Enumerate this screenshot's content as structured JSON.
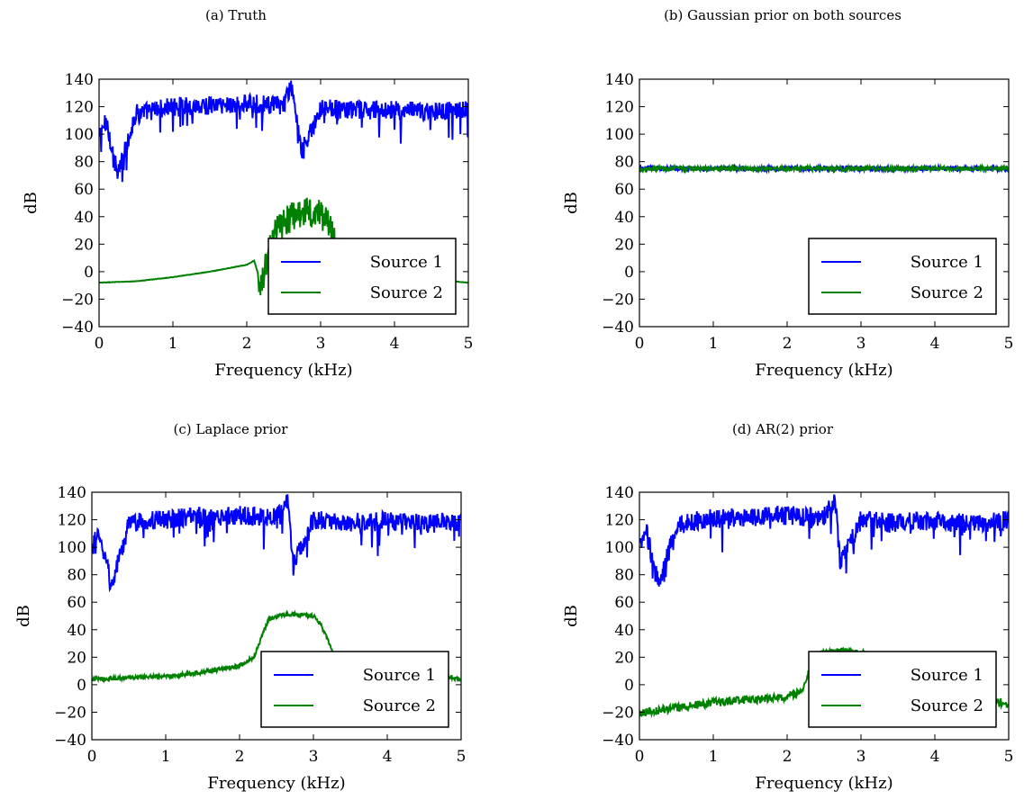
{
  "chart_data": [
    {
      "type": "line",
      "caption": "(a) Truth",
      "xlabel": "Frequency (kHz)",
      "ylabel": "dB",
      "xlim": [
        0,
        5
      ],
      "ylim": [
        -40,
        140
      ],
      "xticks": [
        "0",
        "1",
        "2",
        "3",
        "4",
        "5"
      ],
      "yticks": [
        "−40",
        "−20",
        "0",
        "20",
        "40",
        "60",
        "80",
        "100",
        "120",
        "140"
      ],
      "legend_position": "lower-right",
      "series": [
        {
          "name": "Source 1",
          "color": "#0000ff",
          "x": [
            0,
            0.1,
            0.25,
            0.5,
            1,
            1.5,
            2,
            2.5,
            2.6,
            2.75,
            3,
            3.5,
            4,
            4.5,
            5
          ],
          "y": [
            98,
            110,
            70,
            115,
            120,
            121,
            122,
            121,
            134,
            88,
            119,
            117,
            118,
            116,
            118
          ]
        },
        {
          "name": "Source 2",
          "color": "#008000",
          "x": [
            0,
            0.5,
            1,
            1.5,
            2,
            2.1,
            2.2,
            2.3,
            2.4,
            2.6,
            2.8,
            3,
            3.1,
            3.2,
            3.3,
            5
          ],
          "y": [
            -8,
            -7,
            -4,
            0,
            5,
            8,
            -10,
            15,
            30,
            40,
            44,
            42,
            36,
            22,
            0,
            -8
          ]
        }
      ]
    },
    {
      "type": "line",
      "caption": "(b) Gaussian prior on both sources",
      "xlabel": "Frequency (kHz)",
      "ylabel": "dB",
      "xlim": [
        0,
        5
      ],
      "ylim": [
        -40,
        140
      ],
      "xticks": [
        "0",
        "1",
        "2",
        "3",
        "4",
        "5"
      ],
      "yticks": [
        "−40",
        "−20",
        "0",
        "20",
        "40",
        "60",
        "80",
        "100",
        "120",
        "140"
      ],
      "legend_position": "lower-right",
      "series": [
        {
          "name": "Source 1",
          "color": "#0000ff",
          "x": [
            0,
            1,
            2,
            3,
            4,
            5
          ],
          "y": [
            75,
            75,
            75,
            75,
            75,
            75
          ]
        },
        {
          "name": "Source 2",
          "color": "#008000",
          "x": [
            0,
            1,
            2,
            3,
            4,
            5
          ],
          "y": [
            75,
            75,
            75,
            75,
            75,
            75
          ]
        }
      ]
    },
    {
      "type": "line",
      "caption": "(c) Laplace prior",
      "xlabel": "Frequency (kHz)",
      "ylabel": "dB",
      "xlim": [
        0,
        5
      ],
      "ylim": [
        -40,
        140
      ],
      "xticks": [
        "0",
        "1",
        "2",
        "3",
        "4",
        "5"
      ],
      "yticks": [
        "−40",
        "−20",
        "0",
        "20",
        "40",
        "60",
        "80",
        "100",
        "120",
        "140"
      ],
      "legend_position": "lower-right",
      "series": [
        {
          "name": "Source 1",
          "color": "#0000ff",
          "x": [
            0,
            0.1,
            0.27,
            0.5,
            1,
            1.5,
            2,
            2.5,
            2.65,
            2.72,
            3,
            3.5,
            4,
            4.5,
            5
          ],
          "y": [
            100,
            110,
            72,
            117,
            121,
            122,
            123,
            122,
            135,
            88,
            120,
            118,
            119,
            117,
            119
          ]
        },
        {
          "name": "Source 2",
          "color": "#008000",
          "x": [
            0,
            0.5,
            1,
            1.5,
            2,
            2.2,
            2.3,
            2.4,
            2.6,
            2.8,
            3,
            3.1,
            3.2,
            3.3,
            5
          ],
          "y": [
            4,
            5,
            6,
            9,
            14,
            20,
            35,
            48,
            51,
            51,
            50,
            44,
            32,
            20,
            4
          ]
        }
      ]
    },
    {
      "type": "line",
      "caption": "(d) AR(2) prior",
      "xlabel": "Frequency (kHz)",
      "ylabel": "dB",
      "xlim": [
        0,
        5
      ],
      "ylim": [
        -40,
        140
      ],
      "xticks": [
        "0",
        "1",
        "2",
        "3",
        "4",
        "5"
      ],
      "yticks": [
        "−40",
        "−20",
        "0",
        "20",
        "40",
        "60",
        "80",
        "100",
        "120",
        "140"
      ],
      "legend_position": "lower-right",
      "series": [
        {
          "name": "Source 1",
          "color": "#0000ff",
          "x": [
            0,
            0.1,
            0.27,
            0.5,
            1,
            1.5,
            2,
            2.5,
            2.65,
            2.72,
            3,
            3.5,
            4,
            4.5,
            5
          ],
          "y": [
            100,
            110,
            72,
            117,
            121,
            122,
            123,
            122,
            135,
            88,
            120,
            118,
            119,
            117,
            119
          ]
        },
        {
          "name": "Source 2",
          "color": "#008000",
          "x": [
            0,
            0.5,
            1,
            1.5,
            2,
            2.2,
            2.3,
            2.4,
            2.6,
            2.8,
            3,
            3.1,
            5
          ],
          "y": [
            -20,
            -17,
            -13,
            -11,
            -9,
            -5,
            10,
            22,
            25,
            25,
            24,
            22,
            -15
          ]
        }
      ]
    }
  ]
}
